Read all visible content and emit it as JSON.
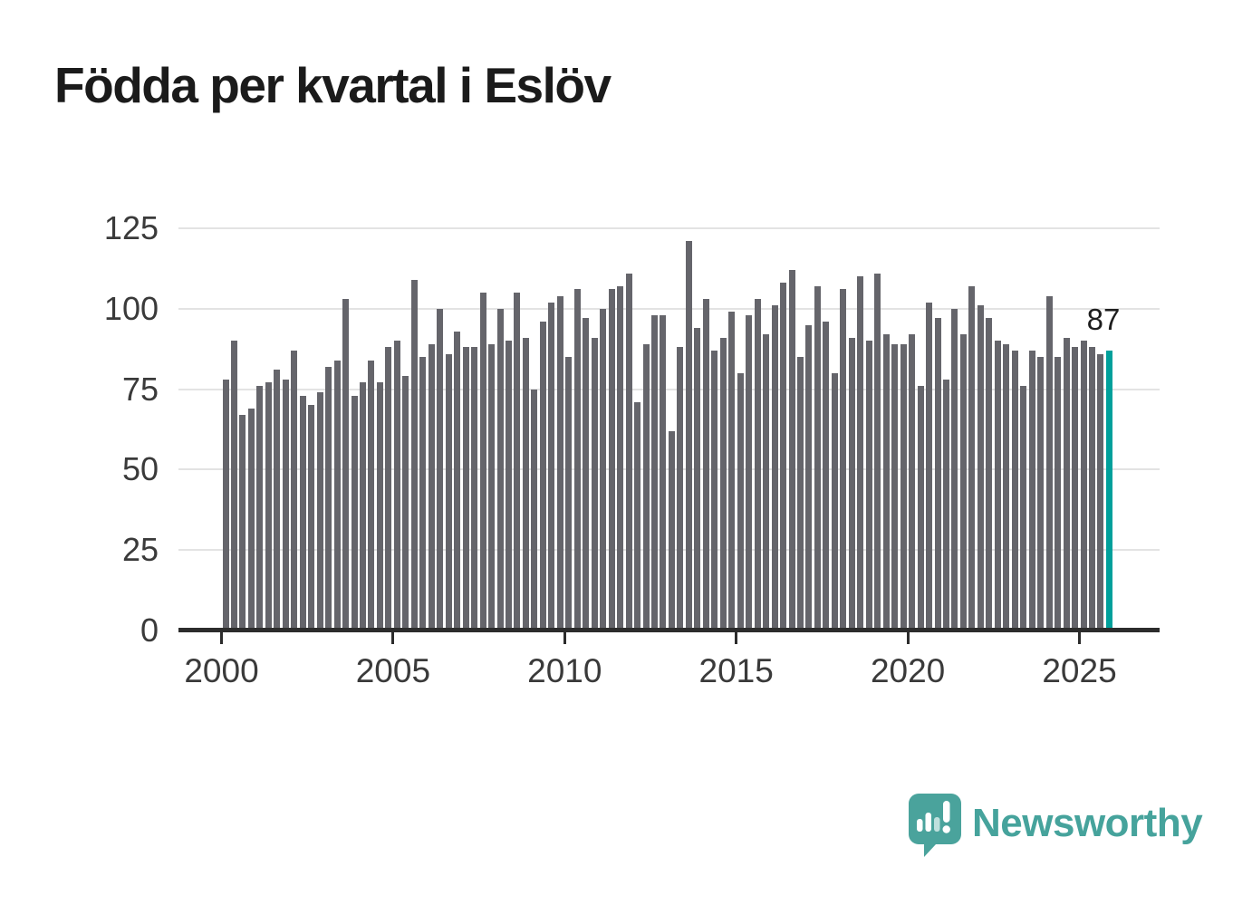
{
  "title": "Födda per kvartal i Eslöv",
  "annotation": {
    "value": "87"
  },
  "logo": {
    "brand": "Newsworthy"
  },
  "colors": {
    "bar": "#65656B",
    "highlight": "#00A09B",
    "grid": "#E3E3E3",
    "axis": "#2C2C2C",
    "tick_text": "#3A3A3A",
    "title_text": "#1B1B1B",
    "brand_teal": "#46A39C"
  },
  "chart_data": {
    "type": "bar",
    "title": "Födda per kvartal i Eslöv",
    "x_unit": "quarter",
    "start": "2000-Q1",
    "end": "2025-Q4",
    "xlabel": "",
    "ylabel": "",
    "ylim": [
      0,
      125
    ],
    "yticks": [
      0,
      25,
      50,
      75,
      100,
      125
    ],
    "ytick_labels": [
      "0",
      "25",
      "50",
      "75",
      "100",
      "125"
    ],
    "xtick_years": [
      2000,
      2005,
      2010,
      2015,
      2020,
      2025
    ],
    "xtick_labels": [
      "2000",
      "2005",
      "2010",
      "2015",
      "2020",
      "2025"
    ],
    "grid": "horizontal",
    "legend": "none",
    "highlight_last_bar": true,
    "last_value_label": "87",
    "values": [
      78,
      90,
      67,
      69,
      76,
      77,
      81,
      78,
      87,
      73,
      70,
      74,
      82,
      84,
      103,
      73,
      77,
      84,
      77,
      88,
      90,
      79,
      109,
      85,
      89,
      100,
      86,
      93,
      88,
      88,
      105,
      89,
      100,
      90,
      105,
      91,
      75,
      96,
      102,
      104,
      85,
      106,
      97,
      91,
      100,
      106,
      107,
      111,
      71,
      89,
      98,
      98,
      62,
      88,
      121,
      94,
      103,
      87,
      91,
      99,
      80,
      98,
      103,
      92,
      101,
      108,
      112,
      85,
      95,
      107,
      96,
      80,
      106,
      91,
      110,
      90,
      111,
      92,
      89,
      89,
      92,
      76,
      102,
      97,
      78,
      100,
      92,
      107,
      101,
      97,
      90,
      89,
      87,
      76,
      87,
      85,
      104,
      85,
      91,
      88,
      90,
      88,
      86,
      87
    ]
  }
}
